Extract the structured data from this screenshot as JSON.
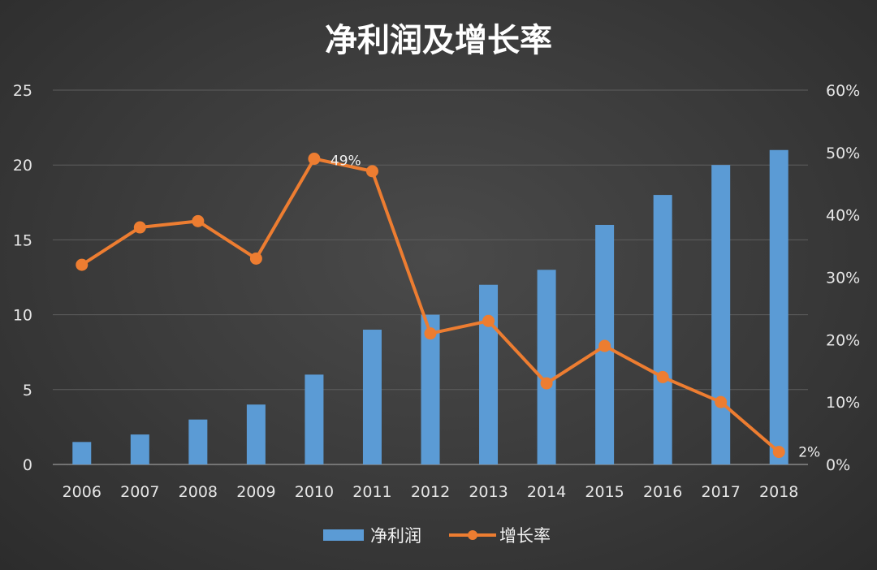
{
  "chart_data": {
    "type": "bar",
    "title": "净利润及增长率",
    "categories": [
      "2006",
      "2007",
      "2008",
      "2009",
      "2010",
      "2011",
      "2012",
      "2013",
      "2014",
      "2015",
      "2016",
      "2017",
      "2018"
    ],
    "series": [
      {
        "name": "净利润",
        "type": "bar",
        "axis": "left",
        "color": "#5b9bd5",
        "values": [
          1.5,
          2,
          3,
          4,
          6,
          9,
          10,
          12,
          13,
          16,
          18,
          20,
          21
        ]
      },
      {
        "name": "增长率",
        "type": "line",
        "axis": "right",
        "color": "#ed7d31",
        "values": [
          0.32,
          0.38,
          0.39,
          0.33,
          0.49,
          0.47,
          0.21,
          0.23,
          0.13,
          0.19,
          0.14,
          0.1,
          0.02
        ]
      }
    ],
    "left_axis": {
      "min": 0,
      "max": 25,
      "ticks": [
        "0",
        "5",
        "10",
        "15",
        "20",
        "25"
      ]
    },
    "right_axis": {
      "min": 0,
      "max": 0.6,
      "ticks": [
        "0%",
        "10%",
        "20%",
        "30%",
        "40%",
        "50%",
        "60%"
      ]
    },
    "data_labels": [
      {
        "series": "增长率",
        "category": "2010",
        "text": "49%"
      },
      {
        "series": "增长率",
        "category": "2018",
        "text": "2%"
      }
    ],
    "grid": true,
    "legend": "bottom",
    "colors": {
      "grid": "#5e5e5e",
      "axis": "#888888"
    }
  }
}
